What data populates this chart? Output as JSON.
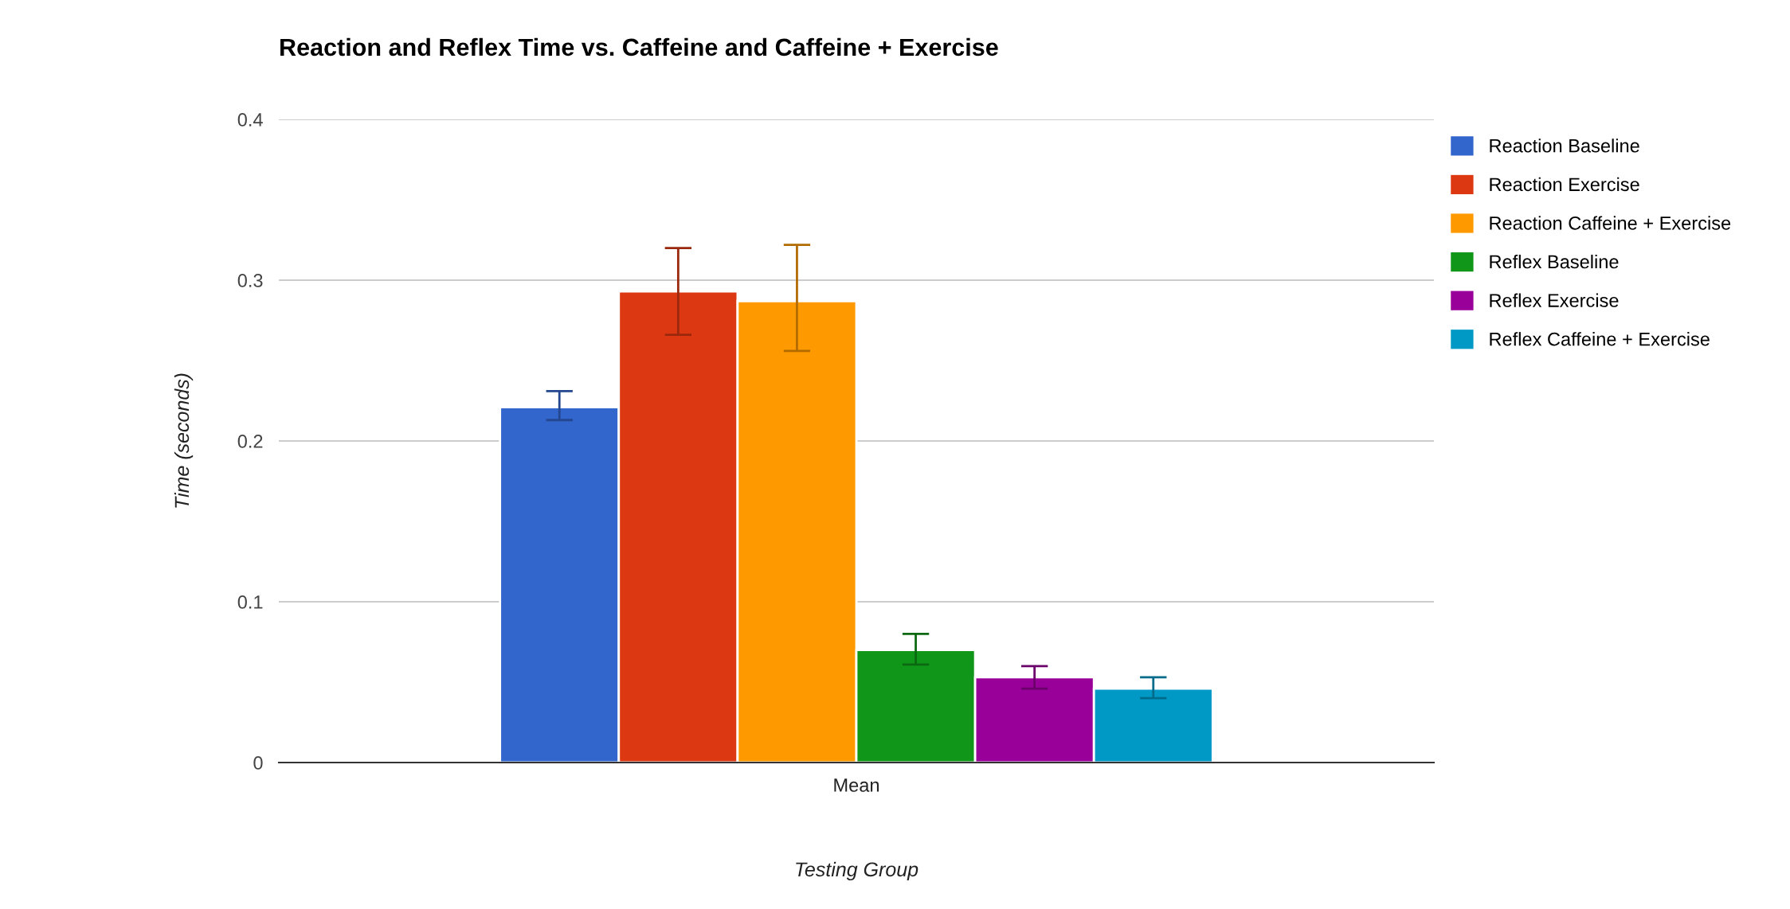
{
  "chart_data": {
    "type": "bar",
    "title": "Reaction and Reflex Time vs. Caffeine and Caffeine + Exercise",
    "xlabel": "Testing Group",
    "ylabel": "Time (seconds)",
    "categories": [
      "Mean"
    ],
    "series": [
      {
        "name": "Reaction Baseline",
        "color": "#3366cc",
        "values": [
          0.221
        ],
        "errors": [
          [
            0.213,
            0.231
          ]
        ]
      },
      {
        "name": "Reaction Exercise",
        "color": "#dc3912",
        "values": [
          0.293
        ],
        "errors": [
          [
            0.266,
            0.32
          ]
        ]
      },
      {
        "name": "Reaction Caffeine + Exercise",
        "color": "#ff9900",
        "values": [
          0.287
        ],
        "errors": [
          [
            0.256,
            0.322
          ]
        ]
      },
      {
        "name": "Reflex Baseline",
        "color": "#109618",
        "values": [
          0.07
        ],
        "errors": [
          [
            0.061,
            0.08
          ]
        ]
      },
      {
        "name": "Reflex Exercise",
        "color": "#990099",
        "values": [
          0.053
        ],
        "errors": [
          [
            0.046,
            0.06
          ]
        ]
      },
      {
        "name": "Reflex Caffeine + Exercise",
        "color": "#0099c6",
        "values": [
          0.046
        ],
        "errors": [
          [
            0.04,
            0.053
          ]
        ]
      }
    ],
    "ylim": [
      0,
      0.4
    ],
    "yticks": [
      0,
      0.1,
      0.2,
      0.3,
      0.4
    ],
    "grid": "y",
    "legend": "right"
  }
}
